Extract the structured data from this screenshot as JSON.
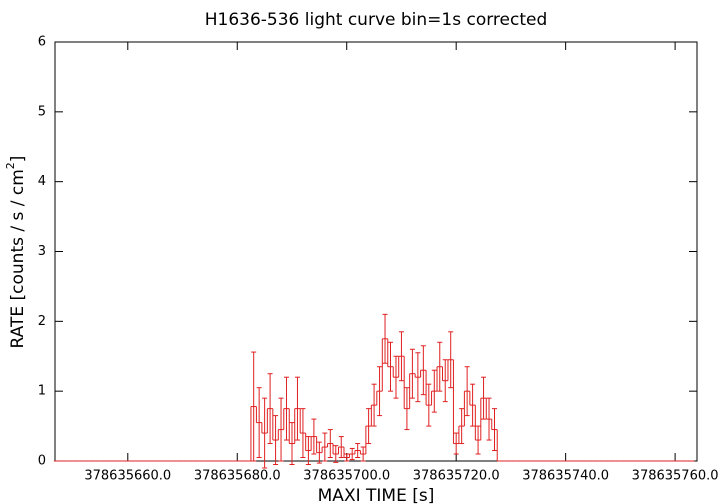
{
  "chart_data": {
    "type": "step-errorbar",
    "title": "H1636-536 light curve bin=1s corrected",
    "xlabel": "MAXI TIME [s]",
    "ylabel": {
      "text": "RATE [counts / s / cm",
      "superscript": "2",
      "end": "]"
    },
    "color": "#e02020",
    "xlim": [
      378635646.7,
      378635764.0
    ],
    "xticks": [
      {
        "value": 378635660,
        "label": "378635660.0"
      },
      {
        "value": 378635680,
        "label": "378635680.0"
      },
      {
        "value": 378635700,
        "label": "378635700.0"
      },
      {
        "value": 378635720,
        "label": "378635720.0"
      },
      {
        "value": 378635740,
        "label": "378635740.0"
      },
      {
        "value": 378635760,
        "label": "378635760.0"
      }
    ],
    "ylim": [
      0,
      6
    ],
    "yticks": [
      0,
      1,
      2,
      3,
      4,
      5,
      6
    ],
    "x": [
      378635647,
      378635648,
      378635649,
      378635650,
      378635651,
      378635652,
      378635653,
      378635654,
      378635655,
      378635656,
      378635657,
      378635658,
      378635659,
      378635660,
      378635661,
      378635662,
      378635663,
      378635664,
      378635665,
      378635666,
      378635667,
      378635668,
      378635669,
      378635670,
      378635671,
      378635672,
      378635673,
      378635674,
      378635675,
      378635676,
      378635677,
      378635678,
      378635679,
      378635680,
      378635681,
      378635682,
      378635683,
      378635684,
      378635685,
      378635686,
      378635687,
      378635688,
      378635689,
      378635690,
      378635691,
      378635692,
      378635693,
      378635694,
      378635695,
      378635696,
      378635697,
      378635698,
      378635699,
      378635700,
      378635701,
      378635702,
      378635703,
      378635704,
      378635705,
      378635706,
      378635707,
      378635708,
      378635709,
      378635710,
      378635711,
      378635712,
      378635713,
      378635714,
      378635715,
      378635716,
      378635717,
      378635718,
      378635719,
      378635720,
      378635721,
      378635722,
      378635723,
      378635724,
      378635725,
      378635726,
      378635727,
      378635728,
      378635729,
      378635730,
      378635731,
      378635732,
      378635733,
      378635734,
      378635735,
      378635736,
      378635737,
      378635738,
      378635739,
      378635740,
      378635741,
      378635742,
      378635743,
      378635744,
      378635745,
      378635746,
      378635747,
      378635748,
      378635749,
      378635750,
      378635751,
      378635752,
      378635753,
      378635754,
      378635755,
      378635756,
      378635757,
      378635758,
      378635759,
      378635760,
      378635761,
      378635762,
      378635763
    ],
    "values": [
      0,
      0,
      0,
      0,
      0,
      0,
      0,
      0,
      0,
      0,
      0,
      0,
      0,
      0,
      0,
      0,
      0,
      0,
      0,
      0,
      0,
      0,
      0,
      0,
      0,
      0,
      0,
      0,
      0,
      0,
      0,
      0,
      0,
      0,
      0,
      0,
      0.78,
      0.55,
      0.4,
      0.75,
      0.3,
      0.45,
      0.75,
      0.25,
      0.75,
      0.4,
      0.15,
      0.35,
      0.12,
      0.2,
      0.25,
      0.1,
      0.2,
      0.05,
      0.1,
      0.15,
      0.1,
      0.5,
      0.8,
      1.0,
      1.75,
      1.35,
      1.2,
      1.5,
      0.75,
      1.25,
      1.2,
      1.3,
      0.8,
      1.0,
      1.35,
      1.15,
      1.45,
      0.25,
      0.5,
      1.0,
      0.8,
      0.3,
      0.9,
      0.6,
      0.45,
      0,
      0,
      0,
      0,
      0,
      0,
      0,
      0,
      0,
      0,
      0,
      0,
      0,
      0,
      0,
      0,
      0,
      0,
      0,
      0,
      0,
      0,
      0,
      0,
      0,
      0,
      0,
      0,
      0,
      0,
      0,
      0,
      0,
      0,
      0,
      0
    ],
    "errors": [
      0,
      0,
      0,
      0,
      0,
      0,
      0,
      0,
      0,
      0,
      0,
      0,
      0,
      0,
      0,
      0,
      0,
      0,
      0,
      0,
      0,
      0,
      0,
      0,
      0,
      0,
      0,
      0,
      0,
      0,
      0,
      0,
      0,
      0,
      0,
      0,
      0.78,
      0.5,
      0.5,
      0.5,
      0.35,
      0.45,
      0.45,
      0.3,
      0.45,
      0.35,
      0.2,
      0.25,
      0.15,
      0.2,
      0.2,
      0.12,
      0.15,
      0.05,
      0.08,
      0.1,
      0.1,
      0.25,
      0.3,
      0.35,
      0.35,
      0.35,
      0.3,
      0.35,
      0.3,
      0.35,
      0.35,
      0.35,
      0.3,
      0.3,
      0.35,
      0.3,
      0.4,
      0.15,
      0.25,
      0.35,
      0.3,
      0.2,
      0.3,
      0.3,
      0.3,
      0,
      0,
      0,
      0,
      0,
      0,
      0,
      0,
      0,
      0,
      0,
      0,
      0,
      0,
      0,
      0,
      0,
      0,
      0,
      0,
      0,
      0,
      0,
      0,
      0,
      0,
      0,
      0,
      0,
      0,
      0,
      0,
      0,
      0,
      0,
      0
    ]
  }
}
